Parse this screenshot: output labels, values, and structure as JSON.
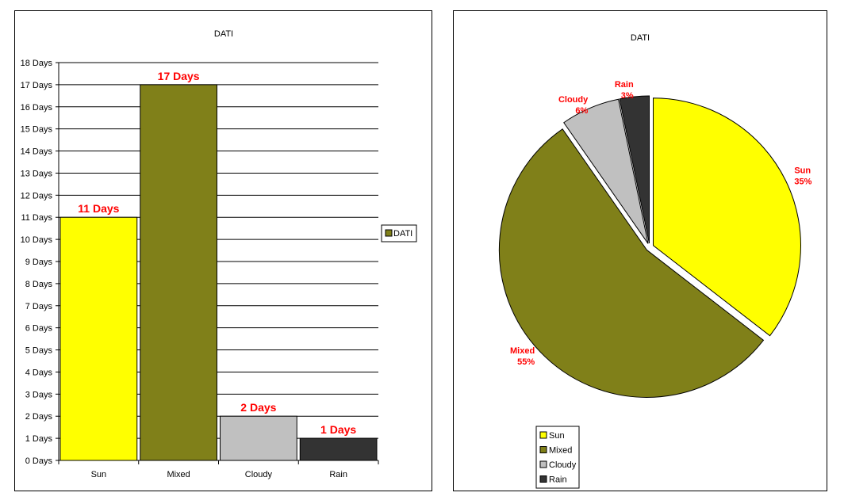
{
  "bar_chart": {
    "title": "DATI",
    "legend": {
      "label": "DATI",
      "color": "#808019"
    }
  },
  "pie_chart": {
    "title": "DATI",
    "legend": [
      {
        "label": "Sun",
        "color": "#ffff00"
      },
      {
        "label": "Mixed",
        "color": "#808019"
      },
      {
        "label": "Cloudy",
        "color": "#c0c0c0"
      },
      {
        "label": "Rain",
        "color": "#333333"
      }
    ]
  },
  "chart_data": [
    {
      "type": "bar",
      "title": "DATI",
      "categories": [
        "Sun",
        "Mixed",
        "Cloudy",
        "Rain"
      ],
      "series": [
        {
          "name": "DATI",
          "values": [
            11,
            17,
            2,
            1
          ]
        }
      ],
      "bar_colors": [
        "#ffff00",
        "#808019",
        "#c0c0c0",
        "#333333"
      ],
      "data_labels": [
        "11 Days",
        "17 Days",
        "2 Days",
        "1 Days"
      ],
      "y_tick_labels": [
        "0 Days",
        "1 Days",
        "2 Days",
        "3 Days",
        "4 Days",
        "5 Days",
        "6 Days",
        "7 Days",
        "8 Days",
        "9 Days",
        "10 Days",
        "11 Days",
        "12 Days",
        "13 Days",
        "14 Days",
        "15 Days",
        "16 Days",
        "17 Days",
        "18 Days"
      ],
      "ylim": [
        0,
        18
      ],
      "xlabel": "",
      "ylabel": "",
      "grid": true,
      "legend_position": "right"
    },
    {
      "type": "pie",
      "title": "DATI",
      "labels": [
        "Sun",
        "Mixed",
        "Cloudy",
        "Rain"
      ],
      "values": [
        11,
        17,
        2,
        1
      ],
      "percent_labels": [
        "35%",
        "55%",
        "6%",
        "3%"
      ],
      "colors": [
        "#ffff00",
        "#808019",
        "#c0c0c0",
        "#333333"
      ],
      "exploded": true,
      "legend_position": "bottom-left"
    }
  ]
}
